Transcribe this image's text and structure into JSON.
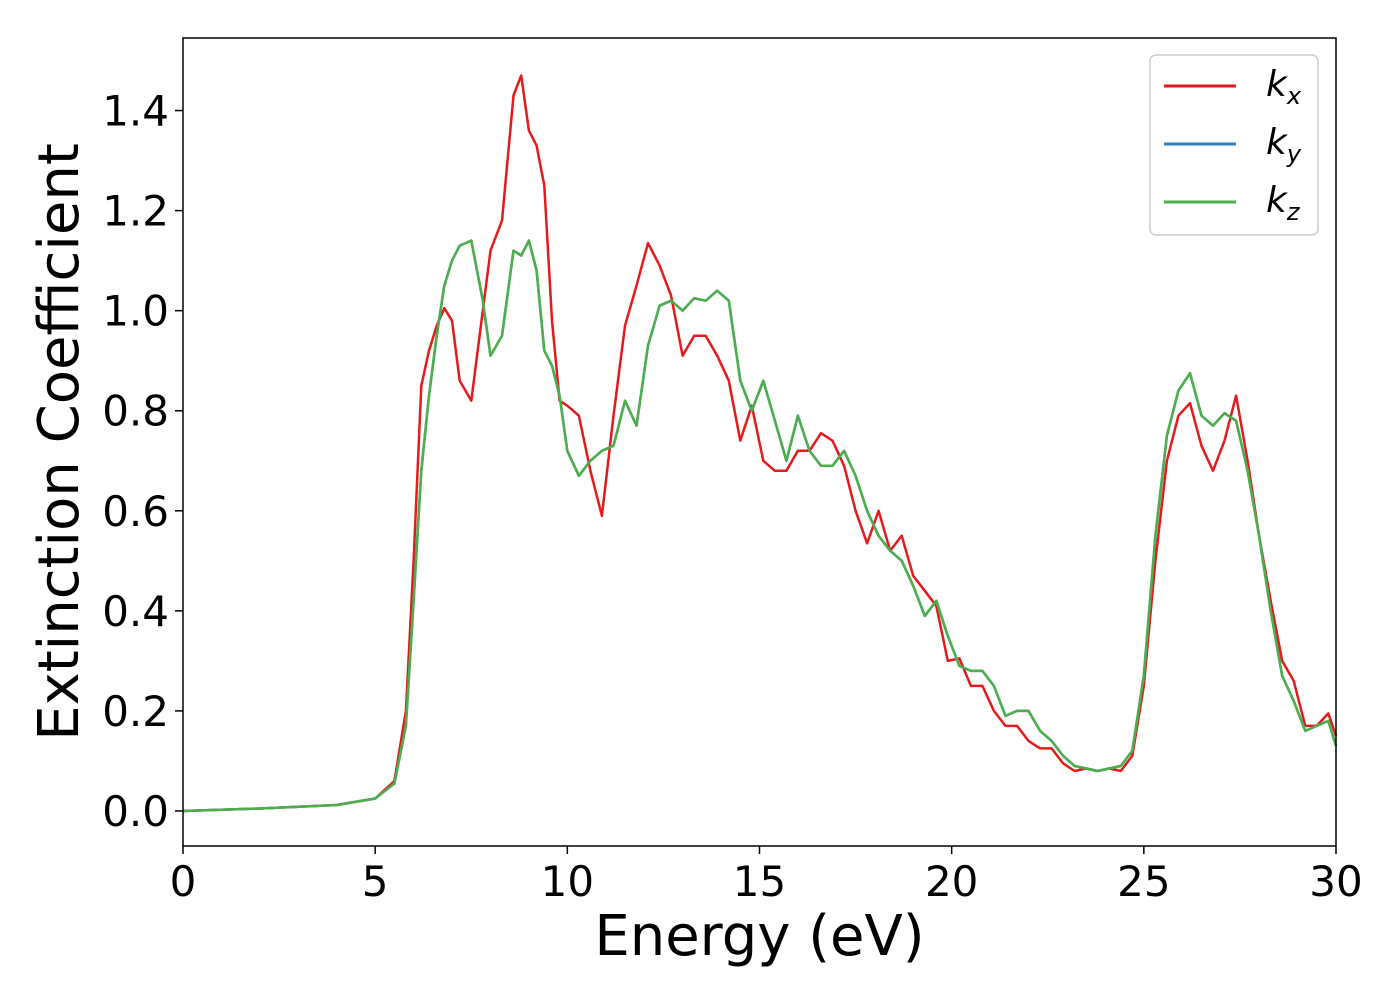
{
  "chart_data": {
    "type": "line",
    "xlabel": "Energy (eV)",
    "ylabel": "Extinction Coefficient",
    "xlim": [
      0,
      30
    ],
    "ylim": [
      -0.07,
      1.545
    ],
    "xticks": [
      0,
      5,
      10,
      15,
      20,
      25,
      30
    ],
    "xtick_labels": [
      "0",
      "5",
      "10",
      "15",
      "20",
      "25",
      "30"
    ],
    "yticks": [
      0.0,
      0.2,
      0.4,
      0.6,
      0.8,
      1.0,
      1.2,
      1.4
    ],
    "ytick_labels": [
      "0.0",
      "0.2",
      "0.4",
      "0.6",
      "0.8",
      "1.0",
      "1.2",
      "1.4"
    ],
    "grid": false,
    "legend_position": "top-right",
    "series": [
      {
        "name": "k",
        "subscript": "x",
        "color": "#e41a1c",
        "x": [
          0,
          2,
          4,
          5,
          5.5,
          5.8,
          6.0,
          6.2,
          6.4,
          6.6,
          6.8,
          7.0,
          7.2,
          7.5,
          7.8,
          8.0,
          8.3,
          8.6,
          8.8,
          9.0,
          9.2,
          9.4,
          9.6,
          9.8,
          10.0,
          10.3,
          10.6,
          10.9,
          11.2,
          11.5,
          11.8,
          12.1,
          12.4,
          12.7,
          13.0,
          13.3,
          13.6,
          13.9,
          14.2,
          14.5,
          14.8,
          15.1,
          15.4,
          15.7,
          16.0,
          16.3,
          16.6,
          16.9,
          17.2,
          17.5,
          17.8,
          18.1,
          18.4,
          18.7,
          19.0,
          19.3,
          19.6,
          19.9,
          20.2,
          20.5,
          20.8,
          21.1,
          21.4,
          21.7,
          22.0,
          22.3,
          22.6,
          22.9,
          23.2,
          23.5,
          23.8,
          24.1,
          24.4,
          24.7,
          25.0,
          25.3,
          25.6,
          25.9,
          26.2,
          26.5,
          26.8,
          27.1,
          27.4,
          27.7,
          28.0,
          28.3,
          28.6,
          28.9,
          29.2,
          29.5,
          29.8,
          30
        ],
        "values": [
          0.0,
          0.005,
          0.012,
          0.025,
          0.06,
          0.2,
          0.5,
          0.85,
          0.92,
          0.97,
          1.005,
          0.98,
          0.86,
          0.82,
          1.0,
          1.12,
          1.18,
          1.43,
          1.47,
          1.36,
          1.33,
          1.25,
          0.98,
          0.82,
          0.81,
          0.79,
          0.68,
          0.59,
          0.79,
          0.97,
          1.05,
          1.135,
          1.09,
          1.03,
          0.91,
          0.95,
          0.95,
          0.91,
          0.86,
          0.74,
          0.81,
          0.7,
          0.68,
          0.68,
          0.72,
          0.72,
          0.755,
          0.74,
          0.69,
          0.6,
          0.535,
          0.6,
          0.52,
          0.55,
          0.47,
          0.44,
          0.41,
          0.3,
          0.305,
          0.25,
          0.25,
          0.2,
          0.17,
          0.17,
          0.14,
          0.125,
          0.125,
          0.095,
          0.08,
          0.085,
          0.08,
          0.085,
          0.08,
          0.11,
          0.25,
          0.5,
          0.7,
          0.79,
          0.815,
          0.73,
          0.68,
          0.74,
          0.83,
          0.7,
          0.55,
          0.42,
          0.3,
          0.26,
          0.17,
          0.17,
          0.195,
          0.15
        ]
      },
      {
        "name": "k",
        "subscript": "y",
        "color": "#377eb8",
        "x": [
          0,
          2,
          4,
          5,
          5.5,
          5.8,
          6.0,
          6.2,
          6.4,
          6.6,
          6.8,
          7.0,
          7.2,
          7.5,
          7.8,
          8.0,
          8.3,
          8.6,
          8.8,
          9.0,
          9.2,
          9.4,
          9.6,
          9.8,
          10.0,
          10.3,
          10.6,
          10.9,
          11.2,
          11.5,
          11.8,
          12.1,
          12.4,
          12.7,
          13.0,
          13.3,
          13.6,
          13.9,
          14.2,
          14.5,
          14.8,
          15.1,
          15.4,
          15.7,
          16.0,
          16.3,
          16.6,
          16.9,
          17.2,
          17.5,
          17.8,
          18.1,
          18.4,
          18.7,
          19.0,
          19.3,
          19.6,
          19.9,
          20.2,
          20.5,
          20.8,
          21.1,
          21.4,
          21.7,
          22.0,
          22.3,
          22.6,
          22.9,
          23.2,
          23.5,
          23.8,
          24.1,
          24.4,
          24.7,
          25.0,
          25.3,
          25.6,
          25.9,
          26.2,
          26.5,
          26.8,
          27.1,
          27.4,
          27.7,
          28.0,
          28.3,
          28.6,
          28.9,
          29.2,
          29.5,
          29.8,
          30
        ],
        "values": [
          0.0,
          0.005,
          0.012,
          0.025,
          0.055,
          0.17,
          0.42,
          0.68,
          0.83,
          0.95,
          1.05,
          1.1,
          1.13,
          1.14,
          1.02,
          0.91,
          0.95,
          1.12,
          1.11,
          1.14,
          1.08,
          0.92,
          0.89,
          0.83,
          0.72,
          0.67,
          0.7,
          0.72,
          0.73,
          0.82,
          0.77,
          0.93,
          1.01,
          1.02,
          1.0,
          1.025,
          1.02,
          1.04,
          1.02,
          0.86,
          0.8,
          0.86,
          0.78,
          0.7,
          0.79,
          0.72,
          0.69,
          0.69,
          0.72,
          0.67,
          0.6,
          0.55,
          0.52,
          0.5,
          0.45,
          0.39,
          0.42,
          0.35,
          0.29,
          0.28,
          0.28,
          0.25,
          0.19,
          0.2,
          0.2,
          0.16,
          0.14,
          0.11,
          0.09,
          0.085,
          0.08,
          0.085,
          0.09,
          0.12,
          0.27,
          0.55,
          0.75,
          0.84,
          0.875,
          0.79,
          0.77,
          0.795,
          0.78,
          0.68,
          0.55,
          0.4,
          0.27,
          0.22,
          0.16,
          0.17,
          0.18,
          0.13
        ]
      },
      {
        "name": "k",
        "subscript": "z",
        "color": "#4daf4a",
        "x": [
          0,
          2,
          4,
          5,
          5.5,
          5.8,
          6.0,
          6.2,
          6.4,
          6.6,
          6.8,
          7.0,
          7.2,
          7.5,
          7.8,
          8.0,
          8.3,
          8.6,
          8.8,
          9.0,
          9.2,
          9.4,
          9.6,
          9.8,
          10.0,
          10.3,
          10.6,
          10.9,
          11.2,
          11.5,
          11.8,
          12.1,
          12.4,
          12.7,
          13.0,
          13.3,
          13.6,
          13.9,
          14.2,
          14.5,
          14.8,
          15.1,
          15.4,
          15.7,
          16.0,
          16.3,
          16.6,
          16.9,
          17.2,
          17.5,
          17.8,
          18.1,
          18.4,
          18.7,
          19.0,
          19.3,
          19.6,
          19.9,
          20.2,
          20.5,
          20.8,
          21.1,
          21.4,
          21.7,
          22.0,
          22.3,
          22.6,
          22.9,
          23.2,
          23.5,
          23.8,
          24.1,
          24.4,
          24.7,
          25.0,
          25.3,
          25.6,
          25.9,
          26.2,
          26.5,
          26.8,
          27.1,
          27.4,
          27.7,
          28.0,
          28.3,
          28.6,
          28.9,
          29.2,
          29.5,
          29.8,
          30
        ],
        "values": [
          0.0,
          0.005,
          0.012,
          0.025,
          0.055,
          0.17,
          0.42,
          0.68,
          0.83,
          0.95,
          1.05,
          1.1,
          1.13,
          1.14,
          1.02,
          0.91,
          0.95,
          1.12,
          1.11,
          1.14,
          1.08,
          0.92,
          0.89,
          0.83,
          0.72,
          0.67,
          0.7,
          0.72,
          0.73,
          0.82,
          0.77,
          0.93,
          1.01,
          1.02,
          1.0,
          1.025,
          1.02,
          1.04,
          1.02,
          0.86,
          0.8,
          0.86,
          0.78,
          0.7,
          0.79,
          0.72,
          0.69,
          0.69,
          0.72,
          0.67,
          0.6,
          0.55,
          0.52,
          0.5,
          0.45,
          0.39,
          0.42,
          0.35,
          0.29,
          0.28,
          0.28,
          0.25,
          0.19,
          0.2,
          0.2,
          0.16,
          0.14,
          0.11,
          0.09,
          0.085,
          0.08,
          0.085,
          0.09,
          0.12,
          0.27,
          0.55,
          0.75,
          0.84,
          0.875,
          0.79,
          0.77,
          0.795,
          0.78,
          0.68,
          0.55,
          0.4,
          0.27,
          0.22,
          0.16,
          0.17,
          0.18,
          0.13
        ]
      }
    ]
  }
}
